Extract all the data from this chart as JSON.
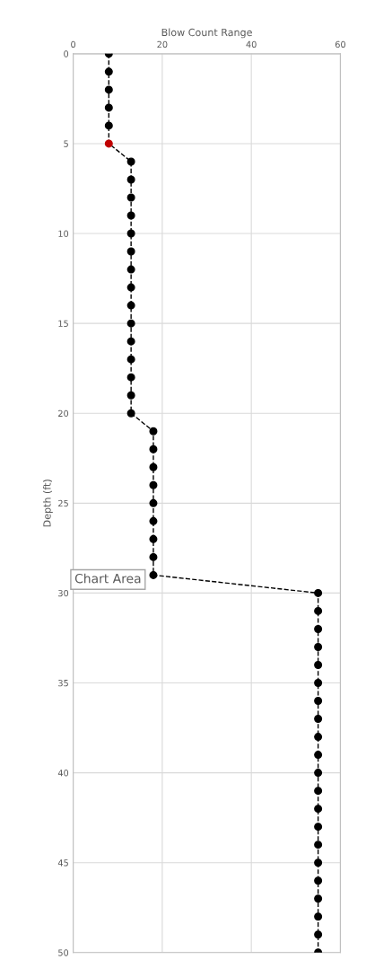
{
  "chart_data": {
    "type": "line",
    "xlabel": "Blow Count Range",
    "ylabel": "Depth (ft)",
    "series": [
      {
        "color": "#000000",
        "colors": [
          "#000000",
          "#000000",
          "#000000",
          "#000000",
          "#000000",
          "#c00000",
          "#000000",
          "#000000",
          "#000000",
          "#000000",
          "#000000",
          "#000000",
          "#000000",
          "#000000",
          "#000000",
          "#000000",
          "#000000",
          "#000000",
          "#000000",
          "#000000",
          "#000000",
          "#000000",
          "#000000",
          "#000000",
          "#000000",
          "#000000",
          "#000000",
          "#000000",
          "#000000",
          "#000000",
          "#000000",
          "#000000",
          "#000000",
          "#000000",
          "#000000",
          "#000000",
          "#000000",
          "#000000",
          "#000000",
          "#000000",
          "#000000",
          "#000000",
          "#000000",
          "#000000",
          "#000000",
          "#000000",
          "#000000",
          "#000000",
          "#000000",
          "#000000",
          "#000000"
        ],
        "x": [
          8,
          8,
          8,
          8,
          8,
          8,
          13,
          13,
          13,
          13,
          13,
          13,
          13,
          13,
          13,
          13,
          13,
          13,
          13,
          13,
          13,
          18,
          18,
          18,
          18,
          18,
          18,
          18,
          18,
          18,
          55,
          55,
          55,
          55,
          55,
          55,
          55,
          55,
          55,
          55,
          55,
          55,
          55,
          55,
          55,
          55,
          55,
          55,
          55,
          55,
          55
        ],
        "values": [
          0,
          1,
          2,
          3,
          4,
          5,
          6,
          7,
          8,
          9,
          10,
          11,
          12,
          13,
          14,
          15,
          16,
          17,
          18,
          19,
          20,
          21,
          22,
          23,
          24,
          25,
          26,
          27,
          28,
          29,
          30,
          31,
          32,
          33,
          34,
          35,
          36,
          37,
          38,
          39,
          40,
          41,
          42,
          43,
          44,
          45,
          46,
          47,
          48,
          49,
          50
        ]
      }
    ],
    "xlim": [
      0,
      60
    ],
    "xticks": [
      0,
      20,
      40,
      60
    ],
    "ylim": [
      50,
      0
    ],
    "yticks": [
      0,
      5,
      10,
      15,
      20,
      25,
      30,
      35,
      40,
      45,
      50
    ],
    "grid": true,
    "marker": "circle",
    "line_style": "dashed",
    "annotations": [
      "Chart Area"
    ]
  }
}
